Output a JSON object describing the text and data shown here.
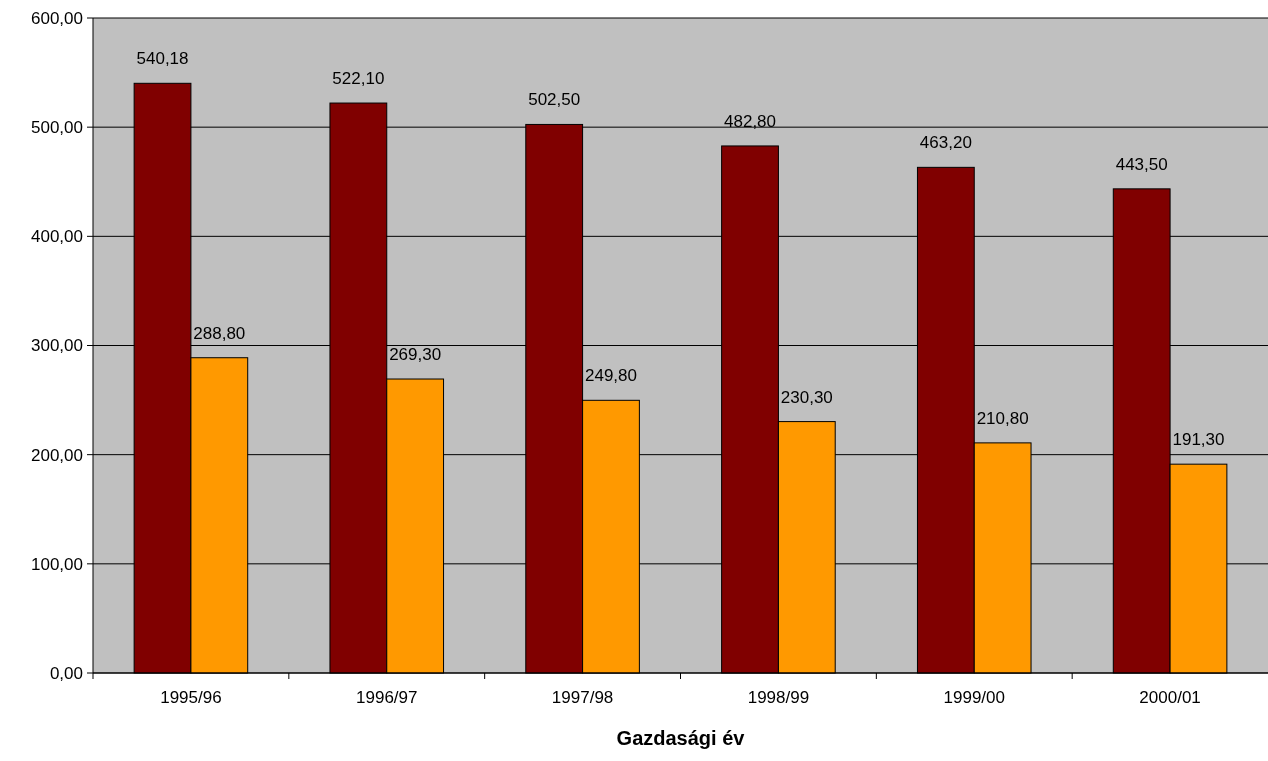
{
  "chart_data": {
    "type": "bar",
    "xlabel": "Gazdasági év",
    "categories": [
      "1995/96",
      "1996/97",
      "1997/98",
      "1998/99",
      "1999/00",
      "2000/01"
    ],
    "series": [
      {
        "color": "#800000",
        "values": [
          540.18,
          522.1,
          502.5,
          482.8,
          463.2,
          443.5
        ],
        "value_labels": [
          "540,18",
          "522,10",
          "502,50",
          "482,80",
          "463,20",
          "443,50"
        ]
      },
      {
        "color": "#ff9900",
        "values": [
          288.8,
          269.3,
          249.8,
          230.3,
          210.8,
          191.3
        ],
        "value_labels": [
          "288,80",
          "269,30",
          "249,80",
          "230,30",
          "210,80",
          "191,30"
        ]
      }
    ],
    "ylim": [
      0,
      600
    ],
    "yticks": [
      {
        "value": 0,
        "label": "0,00"
      },
      {
        "value": 100,
        "label": "100,00"
      },
      {
        "value": 200,
        "label": "200,00"
      },
      {
        "value": 300,
        "label": "300,00"
      },
      {
        "value": 400,
        "label": "400,00"
      },
      {
        "value": 500,
        "label": "500,00"
      },
      {
        "value": 600,
        "label": "600,00"
      }
    ],
    "grid": "y"
  }
}
